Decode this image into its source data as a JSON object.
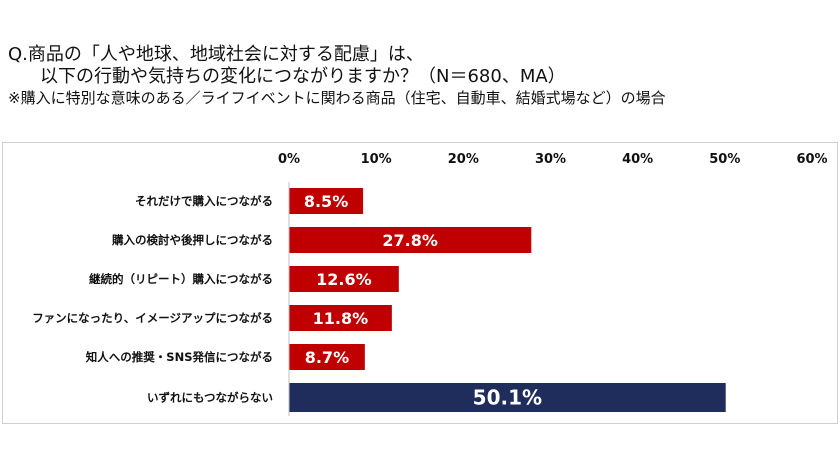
{
  "heading": {
    "question_line1": "Q.商品の「人や地球、地域社会に対する配慮」は、",
    "question_line2": "以下の行動や気持ちの変化につながりますか？（N＝680、MA）",
    "note": "※購入に特別な意味のある／ライフイベントに関わる商品（住宅、自動車、結婚式場など）の場合"
  },
  "chart_data": {
    "type": "bar",
    "orientation": "horizontal",
    "categories": [
      "それだけで購入につながる",
      "購入の検討や後押しにつながる",
      "継続的（リピート）購入につながる",
      "ファンになったり、イメージアップにつながる",
      "知人への推奨・SNS発信につながる",
      "いずれにもつながらない"
    ],
    "values": [
      8.5,
      27.8,
      12.6,
      11.8,
      8.7,
      50.1
    ],
    "value_labels": [
      "8.5%",
      "27.8%",
      "12.6%",
      "11.8%",
      "8.7%",
      "50.1%"
    ],
    "xlim": [
      0,
      60
    ],
    "ticks": [
      0,
      10,
      20,
      30,
      40,
      50,
      60
    ],
    "tick_labels": [
      "0%",
      "10%",
      "20%",
      "30%",
      "40%",
      "50%",
      "60%"
    ],
    "axis_position": "top",
    "grid": false,
    "bar_colors": [
      "#c00000",
      "#c00000",
      "#c00000",
      "#c00000",
      "#c00000",
      "#1f2d5c"
    ]
  }
}
